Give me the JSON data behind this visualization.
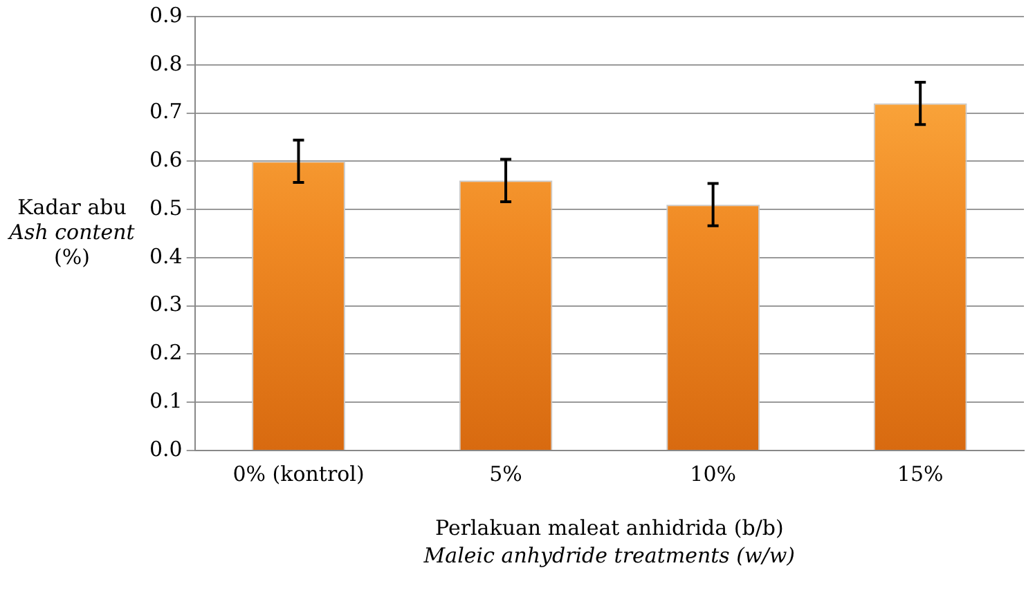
{
  "chart_data": {
    "type": "bar",
    "categories": [
      "0% (kontrol)",
      "5%",
      "10%",
      "15%"
    ],
    "values": [
      0.6,
      0.56,
      0.51,
      0.72
    ],
    "errors": [
      0.044,
      0.044,
      0.044,
      0.044
    ],
    "color": "#f08a24",
    "ylim": [
      0,
      0.9
    ],
    "yticks": [
      {
        "value": 0,
        "label": "0.0"
      },
      0.1,
      0.2,
      0.3,
      0.4,
      0.5,
      0.6,
      0.7,
      0.8,
      0.9
    ],
    "xlabel": "Perlakuan maleat anhidrida (b/b)\nMaleic anhydride treatments (w/w)",
    "ylabel": "Kadar abu\nAsh content\n(%)",
    "grid": "y",
    "legend": false
  }
}
